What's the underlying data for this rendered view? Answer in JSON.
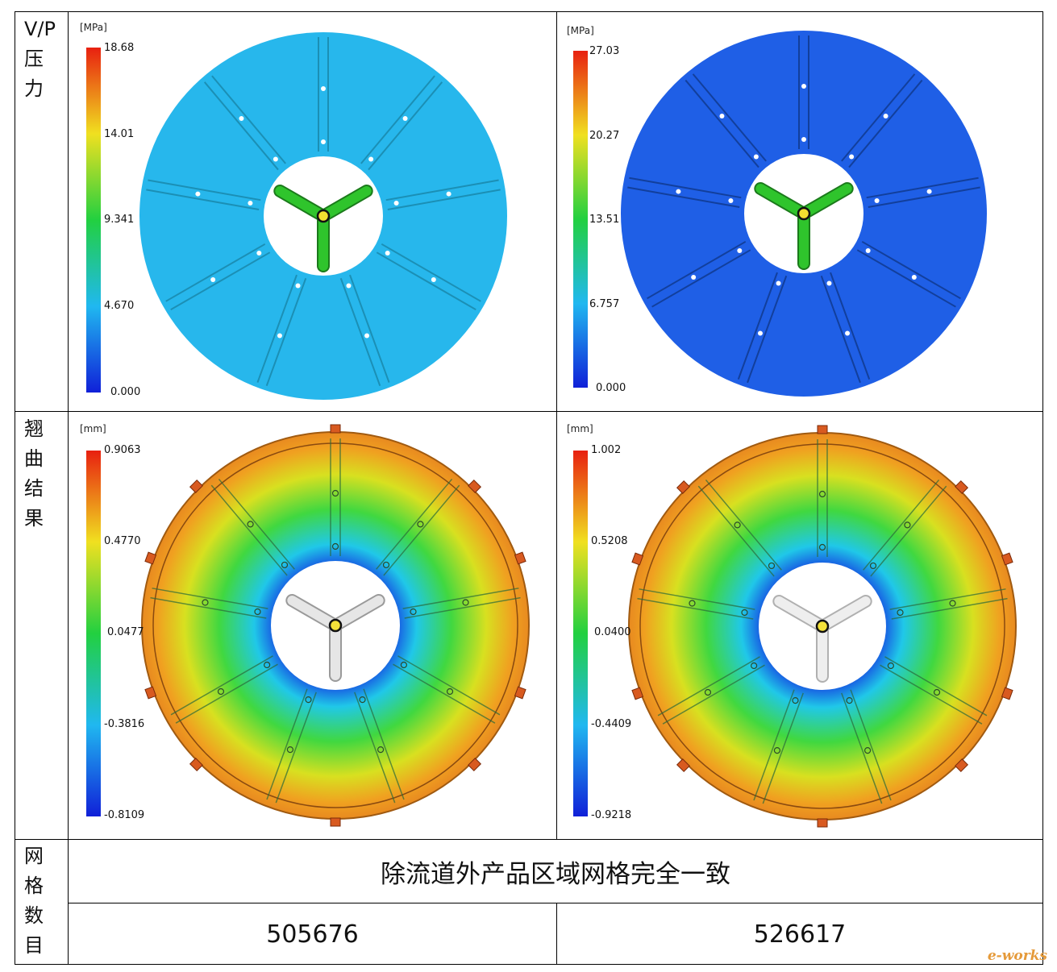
{
  "rows": {
    "pressure_label": [
      "V/P",
      "压",
      "力"
    ],
    "warpage_label": [
      "翘",
      "曲",
      "结",
      "果"
    ],
    "mesh_label": [
      "网",
      "格",
      "数",
      "目"
    ]
  },
  "pressure": {
    "left": {
      "unit": "[MPa]",
      "ticks": [
        "18.68",
        "14.01",
        "9.341",
        "4.670",
        "0.000"
      ]
    },
    "right": {
      "unit": "[MPa]",
      "ticks": [
        "27.03",
        "20.27",
        "13.51",
        "6.757",
        "0.000"
      ]
    }
  },
  "warpage": {
    "left": {
      "unit": "[mm]",
      "ticks": [
        "0.9063",
        "0.4770",
        "0.0477",
        "-0.3816",
        "-0.8109"
      ]
    },
    "right": {
      "unit": "[mm]",
      "ticks": [
        "1.002",
        "0.5208",
        "0.0400",
        "-0.4409",
        "-0.9218"
      ]
    }
  },
  "mesh": {
    "note": "除流道外产品区域网格完全一致",
    "left_count": "505676",
    "right_count": "526617"
  },
  "watermark": "e-works",
  "colors": {
    "pressure_left_fill": "#27b7ec",
    "pressure_right_fill": "#1f5fe6",
    "runner_green": "#2fc42c",
    "warp_outer": "#e89a22",
    "warp_mid": "#4fd83a",
    "warp_inner": "#1a3fe0"
  }
}
